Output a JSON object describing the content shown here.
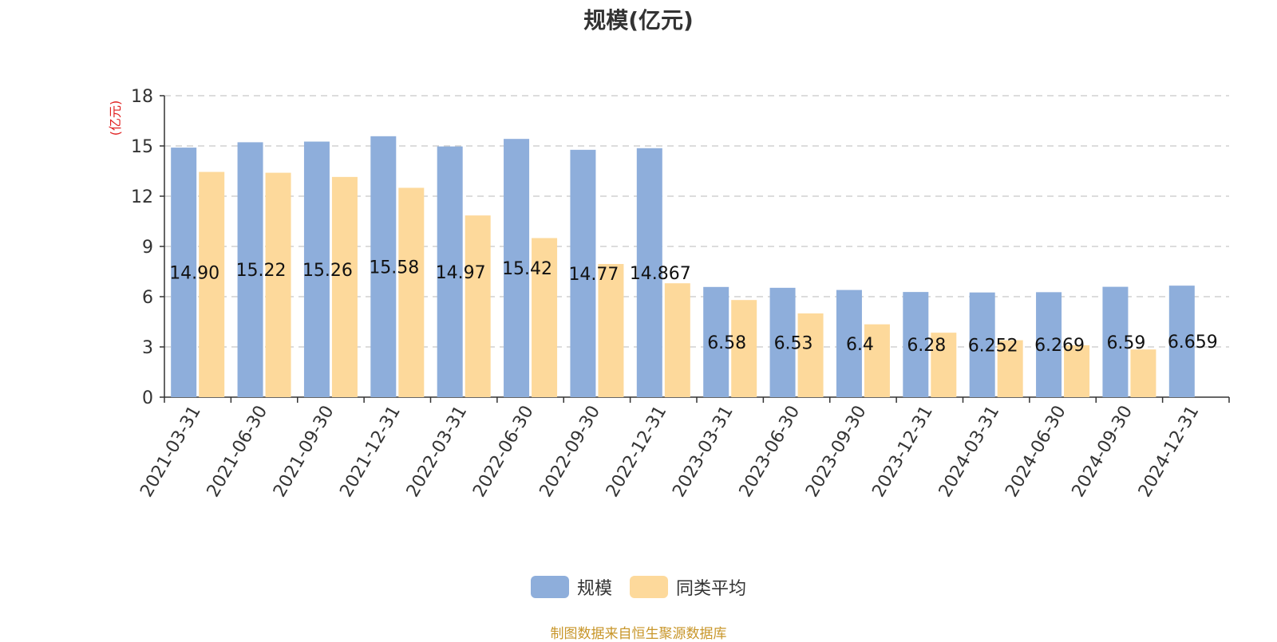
{
  "chart_data": {
    "type": "bar",
    "title": "规模(亿元)",
    "ylabel": "(亿元)",
    "ylim": [
      0,
      18
    ],
    "yticks": [
      0,
      3,
      6,
      9,
      12,
      15,
      18
    ],
    "grid": true,
    "legend_placement": "bottom-center",
    "categories": [
      "2021-03-31",
      "2021-06-30",
      "2021-09-30",
      "2021-12-31",
      "2022-03-31",
      "2022-06-30",
      "2022-09-30",
      "2022-12-31",
      "2023-03-31",
      "2023-06-30",
      "2023-09-30",
      "2023-12-31",
      "2024-03-31",
      "2024-06-30",
      "2024-09-30",
      "2024-12-31"
    ],
    "series": [
      {
        "name": "规模",
        "color": "#8eaedb",
        "values": [
          14.9,
          15.22,
          15.26,
          15.58,
          14.97,
          15.42,
          14.77,
          14.867,
          6.58,
          6.53,
          6.4,
          6.28,
          6.252,
          6.269,
          6.59,
          6.659
        ],
        "labels": [
          "14.90",
          "15.22",
          "15.26",
          "15.58",
          "14.97",
          "15.42",
          "14.77",
          "14.867",
          "6.58",
          "6.53",
          "6.4",
          "6.28",
          "6.252",
          "6.269",
          "6.59",
          "6.659"
        ]
      },
      {
        "name": "同类平均",
        "color": "#fdd99b",
        "values": [
          13.45,
          13.4,
          13.15,
          12.5,
          10.85,
          9.5,
          7.95,
          6.8,
          5.8,
          5.0,
          4.35,
          3.85,
          3.4,
          3.1,
          2.85,
          null
        ]
      }
    ]
  },
  "source_text": "制图数据来自恒生聚源数据库"
}
